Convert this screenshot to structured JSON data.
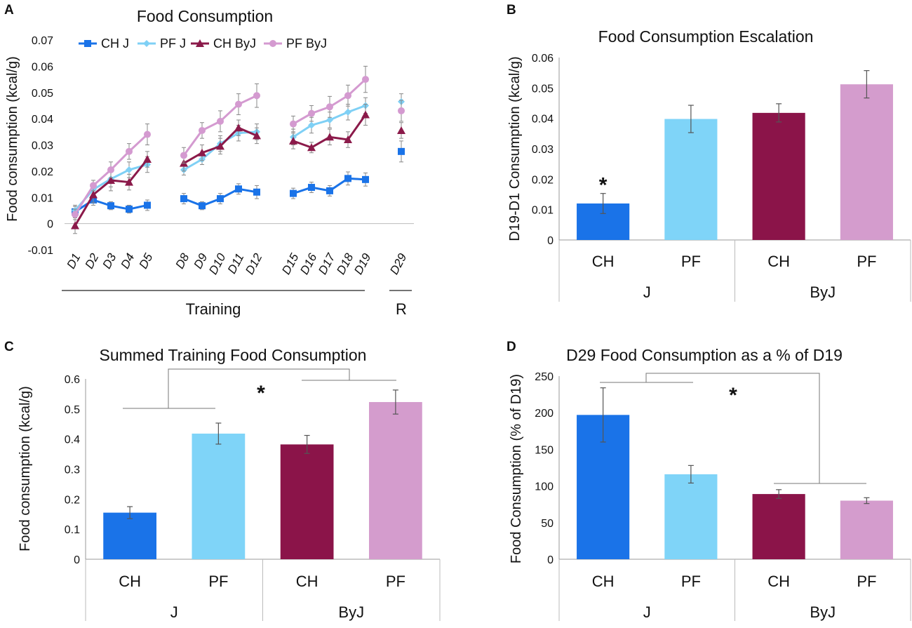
{
  "chart_data": [
    {
      "panel": "A",
      "type": "line",
      "title": "Food Consumption",
      "ylabel": "Food consumption (kcal/g)",
      "ylim": [
        -0.01,
        0.07
      ],
      "yticks": [
        "-0.01",
        "0",
        "0.01",
        "0.02",
        "0.03",
        "0.04",
        "0.05",
        "0.06",
        "0.07"
      ],
      "x": [
        "D1",
        "D2",
        "D3",
        "D4",
        "D5",
        "D8",
        "D9",
        "D10",
        "D11",
        "D12",
        "D15",
        "D16",
        "D17",
        "D18",
        "D19",
        "D29"
      ],
      "groups": [
        {
          "label": "Training"
        },
        {
          "label": "R"
        }
      ],
      "series": [
        {
          "name": "CH J",
          "color": "#1a73e8",
          "marker": "square",
          "values": [
            0.0045,
            0.009,
            0.0068,
            0.0055,
            0.007,
            0.0095,
            0.0068,
            0.0095,
            0.0132,
            0.012,
            0.0115,
            0.0138,
            0.0125,
            0.0172,
            0.0168,
            0.0275
          ],
          "errors": [
            0.002,
            0.002,
            0.0015,
            0.0015,
            0.002,
            0.002,
            0.0015,
            0.002,
            0.002,
            0.0025,
            0.002,
            0.002,
            0.002,
            0.0025,
            0.0025,
            0.004
          ]
        },
        {
          "name": "PF J",
          "color": "#7fd0f5",
          "marker": "diamond",
          "values": [
            0.005,
            0.013,
            0.017,
            0.0205,
            0.0225,
            0.0205,
            0.0245,
            0.0305,
            0.0345,
            0.035,
            0.033,
            0.0375,
            0.0395,
            0.0425,
            0.045,
            0.0465
          ],
          "errors": [
            0.002,
            0.002,
            0.003,
            0.003,
            0.003,
            0.002,
            0.002,
            0.003,
            0.003,
            0.003,
            0.003,
            0.003,
            0.003,
            0.003,
            0.003,
            0.003
          ]
        },
        {
          "name": "CH ByJ",
          "color": "#8b1a4a",
          "marker": "triangle",
          "values": [
            -0.0008,
            0.011,
            0.0165,
            0.0158,
            0.0245,
            0.023,
            0.027,
            0.0295,
            0.0365,
            0.0335,
            0.0315,
            0.029,
            0.033,
            0.032,
            0.0415,
            0.0355
          ],
          "errors": [
            0.003,
            0.003,
            0.004,
            0.003,
            0.003,
            0.003,
            0.003,
            0.003,
            0.003,
            0.003,
            0.003,
            0.002,
            0.003,
            0.003,
            0.004,
            0.003
          ]
        },
        {
          "name": "PF ByJ",
          "color": "#d49ad0",
          "marker": "circle",
          "values": [
            0.0035,
            0.0145,
            0.0205,
            0.0275,
            0.034,
            0.026,
            0.0355,
            0.039,
            0.0455,
            0.0488,
            0.038,
            0.042,
            0.0445,
            0.0488,
            0.055,
            0.043
          ],
          "errors": [
            0.002,
            0.002,
            0.003,
            0.003,
            0.004,
            0.003,
            0.003,
            0.004,
            0.004,
            0.0045,
            0.003,
            0.003,
            0.004,
            0.004,
            0.005,
            0.004
          ]
        }
      ]
    },
    {
      "panel": "B",
      "type": "bar",
      "title": "Food Consumption Escalation",
      "ylabel": "D19-D1 Consumption (kcal/g)",
      "ylim": [
        0,
        0.06
      ],
      "yticks": [
        "0",
        "0.01",
        "0.02",
        "0.03",
        "0.04",
        "0.05",
        "0.06"
      ],
      "categories": [
        "CH",
        "PF",
        "CH",
        "PF"
      ],
      "groups": [
        "J",
        "ByJ"
      ],
      "values": [
        0.012,
        0.0398,
        0.0418,
        0.0512
      ],
      "errors": [
        0.0033,
        0.0045,
        0.003,
        0.0045
      ],
      "colors": [
        "#1a73e8",
        "#7fd4f8",
        "#8b1449",
        "#d49ccd"
      ],
      "annotation": "*"
    },
    {
      "panel": "C",
      "type": "bar",
      "title": "Summed Training Food Consumption",
      "ylabel": "Food consumption (kcal/g)",
      "ylim": [
        0,
        0.6
      ],
      "yticks": [
        "0",
        "0.1",
        "0.2",
        "0.3",
        "0.4",
        "0.5",
        "0.6"
      ],
      "categories": [
        "CH",
        "PF",
        "CH",
        "PF"
      ],
      "groups": [
        "J",
        "ByJ"
      ],
      "values": [
        0.155,
        0.418,
        0.382,
        0.523
      ],
      "errors": [
        0.02,
        0.035,
        0.03,
        0.04
      ],
      "colors": [
        "#1a73e8",
        "#7fd4f8",
        "#8b1449",
        "#d49ccd"
      ],
      "annotation": "*"
    },
    {
      "panel": "D",
      "type": "bar",
      "title": "D29 Food Consumption as a % of D19",
      "ylabel": "Food Consumption (% of D19)",
      "ylim": [
        0,
        250
      ],
      "yticks": [
        "0",
        "50",
        "100",
        "150",
        "200",
        "250"
      ],
      "categories": [
        "CH",
        "PF",
        "CH",
        "PF"
      ],
      "groups": [
        "J",
        "ByJ"
      ],
      "values": [
        197,
        116,
        89,
        80
      ],
      "errors": [
        37,
        12,
        6,
        4
      ],
      "colors": [
        "#1a73e8",
        "#7fd4f8",
        "#8b1449",
        "#d49ccd"
      ],
      "annotation": "*"
    }
  ],
  "panels": [
    {
      "letter": "A"
    },
    {
      "letter": "B"
    },
    {
      "letter": "C"
    },
    {
      "letter": "D"
    }
  ]
}
